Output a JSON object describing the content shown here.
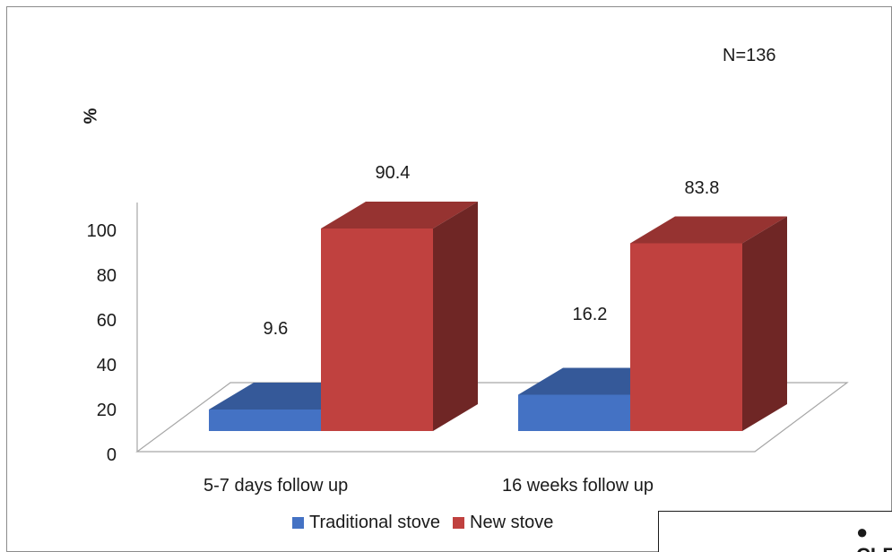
{
  "annotation": "N=136",
  "ylabel": "%",
  "inset_text": "● CLE",
  "chart_data": {
    "type": "bar",
    "categories": [
      "5-7 days follow up",
      "16 weeks follow up"
    ],
    "series": [
      {
        "name": "Traditional stove",
        "values": [
          9.6,
          16.2
        ],
        "color": "#4472c4"
      },
      {
        "name": "New stove",
        "values": [
          90.4,
          83.8
        ],
        "color": "#c0413f"
      }
    ],
    "ylim": [
      0,
      100
    ],
    "yticks": [
      "0",
      "20",
      "40",
      "60",
      "80",
      "100"
    ],
    "data_labels": [
      "9.6",
      "16.2",
      "90.4",
      "83.8"
    ],
    "legend": "bottom",
    "grid": false
  }
}
